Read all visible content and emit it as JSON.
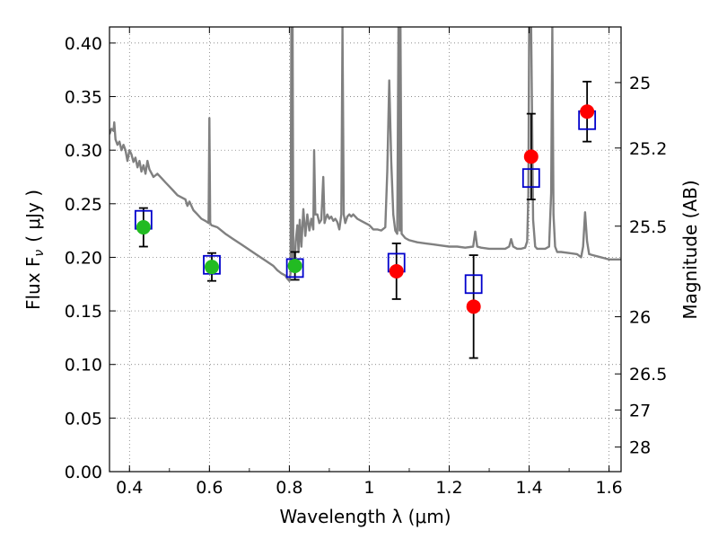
{
  "chart_data": {
    "type": "scatter",
    "xlim": [
      0.35,
      1.63
    ],
    "ylim": [
      0.0,
      0.415
    ],
    "grid": true,
    "xlabel": "Wavelength  λ (μm)",
    "ylabel": "Flux  F",
    "ylabel_sub": "ν",
    "ylabel_unit": "( μJy )",
    "ylabel_right": "Magnitude (AB)",
    "x_ticks": [
      "0.4",
      "0.6",
      "0.8",
      "1",
      "1.2",
      "1.4",
      "1.6"
    ],
    "x_tick_values": [
      0.4,
      0.6,
      0.8,
      1.0,
      1.2,
      1.4,
      1.6
    ],
    "y_ticks": [
      "0.00",
      "0.05",
      "0.10",
      "0.15",
      "0.20",
      "0.25",
      "0.30",
      "0.35",
      "0.40"
    ],
    "y_tick_values": [
      0.0,
      0.05,
      0.1,
      0.15,
      0.2,
      0.25,
      0.3,
      0.35,
      0.4
    ],
    "right_ticks": [
      "25",
      "25.2",
      "25.5",
      "26",
      "26.5",
      "27",
      "28"
    ],
    "right_tick_values": [
      25,
      25.2,
      25.5,
      26,
      26.5,
      27,
      28
    ],
    "observed": [
      {
        "x": 0.435,
        "y": 0.228,
        "err": 0.018,
        "color": "#22bb22"
      },
      {
        "x": 0.606,
        "y": 0.191,
        "err": 0.013,
        "color": "#22bb22"
      },
      {
        "x": 0.814,
        "y": 0.192,
        "err": 0.013,
        "color": "#22bb22"
      },
      {
        "x": 1.068,
        "y": 0.187,
        "err": 0.026,
        "color": "#ff0000"
      },
      {
        "x": 1.261,
        "y": 0.154,
        "err": 0.048,
        "color": "#ff0000"
      },
      {
        "x": 1.405,
        "y": 0.294,
        "err": 0.04,
        "color": "#ff0000"
      },
      {
        "x": 1.545,
        "y": 0.336,
        "err": 0.028,
        "color": "#ff0000"
      }
    ],
    "model_points": [
      {
        "x": 0.435,
        "y": 0.235
      },
      {
        "x": 0.606,
        "y": 0.193
      },
      {
        "x": 0.814,
        "y": 0.19
      },
      {
        "x": 1.068,
        "y": 0.195
      },
      {
        "x": 1.261,
        "y": 0.175
      },
      {
        "x": 1.405,
        "y": 0.274
      },
      {
        "x": 1.545,
        "y": 0.328
      }
    ],
    "model_point_color": "#0000cc",
    "spectrum_color": "#808080",
    "spectrum": [
      [
        0.35,
        0.315
      ],
      [
        0.355,
        0.32
      ],
      [
        0.36,
        0.318
      ],
      [
        0.362,
        0.326
      ],
      [
        0.365,
        0.31
      ],
      [
        0.37,
        0.305
      ],
      [
        0.375,
        0.308
      ],
      [
        0.38,
        0.3
      ],
      [
        0.385,
        0.305
      ],
      [
        0.39,
        0.3
      ],
      [
        0.395,
        0.29
      ],
      [
        0.4,
        0.3
      ],
      [
        0.405,
        0.296
      ],
      [
        0.41,
        0.289
      ],
      [
        0.415,
        0.293
      ],
      [
        0.42,
        0.284
      ],
      [
        0.425,
        0.29
      ],
      [
        0.43,
        0.28
      ],
      [
        0.435,
        0.286
      ],
      [
        0.44,
        0.278
      ],
      [
        0.445,
        0.29
      ],
      [
        0.45,
        0.282
      ],
      [
        0.46,
        0.275
      ],
      [
        0.47,
        0.278
      ],
      [
        0.48,
        0.274
      ],
      [
        0.49,
        0.27
      ],
      [
        0.5,
        0.266
      ],
      [
        0.51,
        0.262
      ],
      [
        0.52,
        0.258
      ],
      [
        0.53,
        0.256
      ],
      [
        0.54,
        0.254
      ],
      [
        0.545,
        0.248
      ],
      [
        0.55,
        0.252
      ],
      [
        0.56,
        0.244
      ],
      [
        0.57,
        0.24
      ],
      [
        0.58,
        0.236
      ],
      [
        0.59,
        0.234
      ],
      [
        0.598,
        0.232
      ],
      [
        0.6,
        0.33
      ],
      [
        0.602,
        0.232
      ],
      [
        0.605,
        0.23
      ],
      [
        0.62,
        0.228
      ],
      [
        0.64,
        0.222
      ],
      [
        0.66,
        0.217
      ],
      [
        0.68,
        0.212
      ],
      [
        0.7,
        0.207
      ],
      [
        0.72,
        0.202
      ],
      [
        0.74,
        0.197
      ],
      [
        0.76,
        0.192
      ],
      [
        0.77,
        0.188
      ],
      [
        0.78,
        0.185
      ],
      [
        0.79,
        0.183
      ],
      [
        0.795,
        0.18
      ],
      [
        0.8,
        0.178
      ],
      [
        0.803,
        0.185
      ],
      [
        0.805,
        0.415
      ],
      [
        0.806,
        0.2
      ],
      [
        0.808,
        0.415
      ],
      [
        0.81,
        0.2
      ],
      [
        0.813,
        0.19
      ],
      [
        0.816,
        0.215
      ],
      [
        0.82,
        0.23
      ],
      [
        0.823,
        0.205
      ],
      [
        0.826,
        0.235
      ],
      [
        0.83,
        0.21
      ],
      [
        0.835,
        0.245
      ],
      [
        0.84,
        0.22
      ],
      [
        0.845,
        0.24
      ],
      [
        0.85,
        0.225
      ],
      [
        0.855,
        0.236
      ],
      [
        0.86,
        0.226
      ],
      [
        0.862,
        0.3
      ],
      [
        0.865,
        0.24
      ],
      [
        0.87,
        0.24
      ],
      [
        0.875,
        0.232
      ],
      [
        0.88,
        0.235
      ],
      [
        0.885,
        0.275
      ],
      [
        0.888,
        0.232
      ],
      [
        0.89,
        0.235
      ],
      [
        0.895,
        0.24
      ],
      [
        0.9,
        0.236
      ],
      [
        0.905,
        0.238
      ],
      [
        0.91,
        0.234
      ],
      [
        0.915,
        0.236
      ],
      [
        0.92,
        0.233
      ],
      [
        0.925,
        0.226
      ],
      [
        0.93,
        0.24
      ],
      [
        0.933,
        0.415
      ],
      [
        0.936,
        0.24
      ],
      [
        0.94,
        0.232
      ],
      [
        0.945,
        0.238
      ],
      [
        0.95,
        0.24
      ],
      [
        0.955,
        0.238
      ],
      [
        0.96,
        0.24
      ],
      [
        0.97,
        0.236
      ],
      [
        0.98,
        0.234
      ],
      [
        0.99,
        0.232
      ],
      [
        1.0,
        0.23
      ],
      [
        1.005,
        0.228
      ],
      [
        1.01,
        0.226
      ],
      [
        1.02,
        0.226
      ],
      [
        1.03,
        0.225
      ],
      [
        1.04,
        0.228
      ],
      [
        1.045,
        0.28
      ],
      [
        1.05,
        0.365
      ],
      [
        1.055,
        0.29
      ],
      [
        1.06,
        0.24
      ],
      [
        1.065,
        0.225
      ],
      [
        1.07,
        0.222
      ],
      [
        1.073,
        0.415
      ],
      [
        1.076,
        0.225
      ],
      [
        1.078,
        0.415
      ],
      [
        1.081,
        0.222
      ],
      [
        1.09,
        0.218
      ],
      [
        1.1,
        0.216
      ],
      [
        1.12,
        0.214
      ],
      [
        1.14,
        0.213
      ],
      [
        1.16,
        0.212
      ],
      [
        1.18,
        0.211
      ],
      [
        1.2,
        0.21
      ],
      [
        1.22,
        0.21
      ],
      [
        1.24,
        0.209
      ],
      [
        1.26,
        0.21
      ],
      [
        1.265,
        0.224
      ],
      [
        1.27,
        0.21
      ],
      [
        1.28,
        0.209
      ],
      [
        1.3,
        0.208
      ],
      [
        1.32,
        0.208
      ],
      [
        1.34,
        0.208
      ],
      [
        1.35,
        0.21
      ],
      [
        1.355,
        0.217
      ],
      [
        1.36,
        0.21
      ],
      [
        1.37,
        0.208
      ],
      [
        1.38,
        0.208
      ],
      [
        1.39,
        0.209
      ],
      [
        1.395,
        0.215
      ],
      [
        1.398,
        0.26
      ],
      [
        1.4,
        0.415
      ],
      [
        1.405,
        0.415
      ],
      [
        1.41,
        0.235
      ],
      [
        1.415,
        0.21
      ],
      [
        1.42,
        0.208
      ],
      [
        1.44,
        0.208
      ],
      [
        1.45,
        0.21
      ],
      [
        1.455,
        0.26
      ],
      [
        1.458,
        0.415
      ],
      [
        1.461,
        0.24
      ],
      [
        1.465,
        0.21
      ],
      [
        1.47,
        0.205
      ],
      [
        1.48,
        0.205
      ],
      [
        1.5,
        0.204
      ],
      [
        1.52,
        0.203
      ],
      [
        1.53,
        0.2
      ],
      [
        1.535,
        0.21
      ],
      [
        1.54,
        0.242
      ],
      [
        1.545,
        0.215
      ],
      [
        1.55,
        0.203
      ],
      [
        1.56,
        0.202
      ],
      [
        1.57,
        0.201
      ],
      [
        1.58,
        0.2
      ],
      [
        1.59,
        0.199
      ],
      [
        1.6,
        0.198
      ],
      [
        1.62,
        0.198
      ],
      [
        1.63,
        0.198
      ]
    ]
  }
}
